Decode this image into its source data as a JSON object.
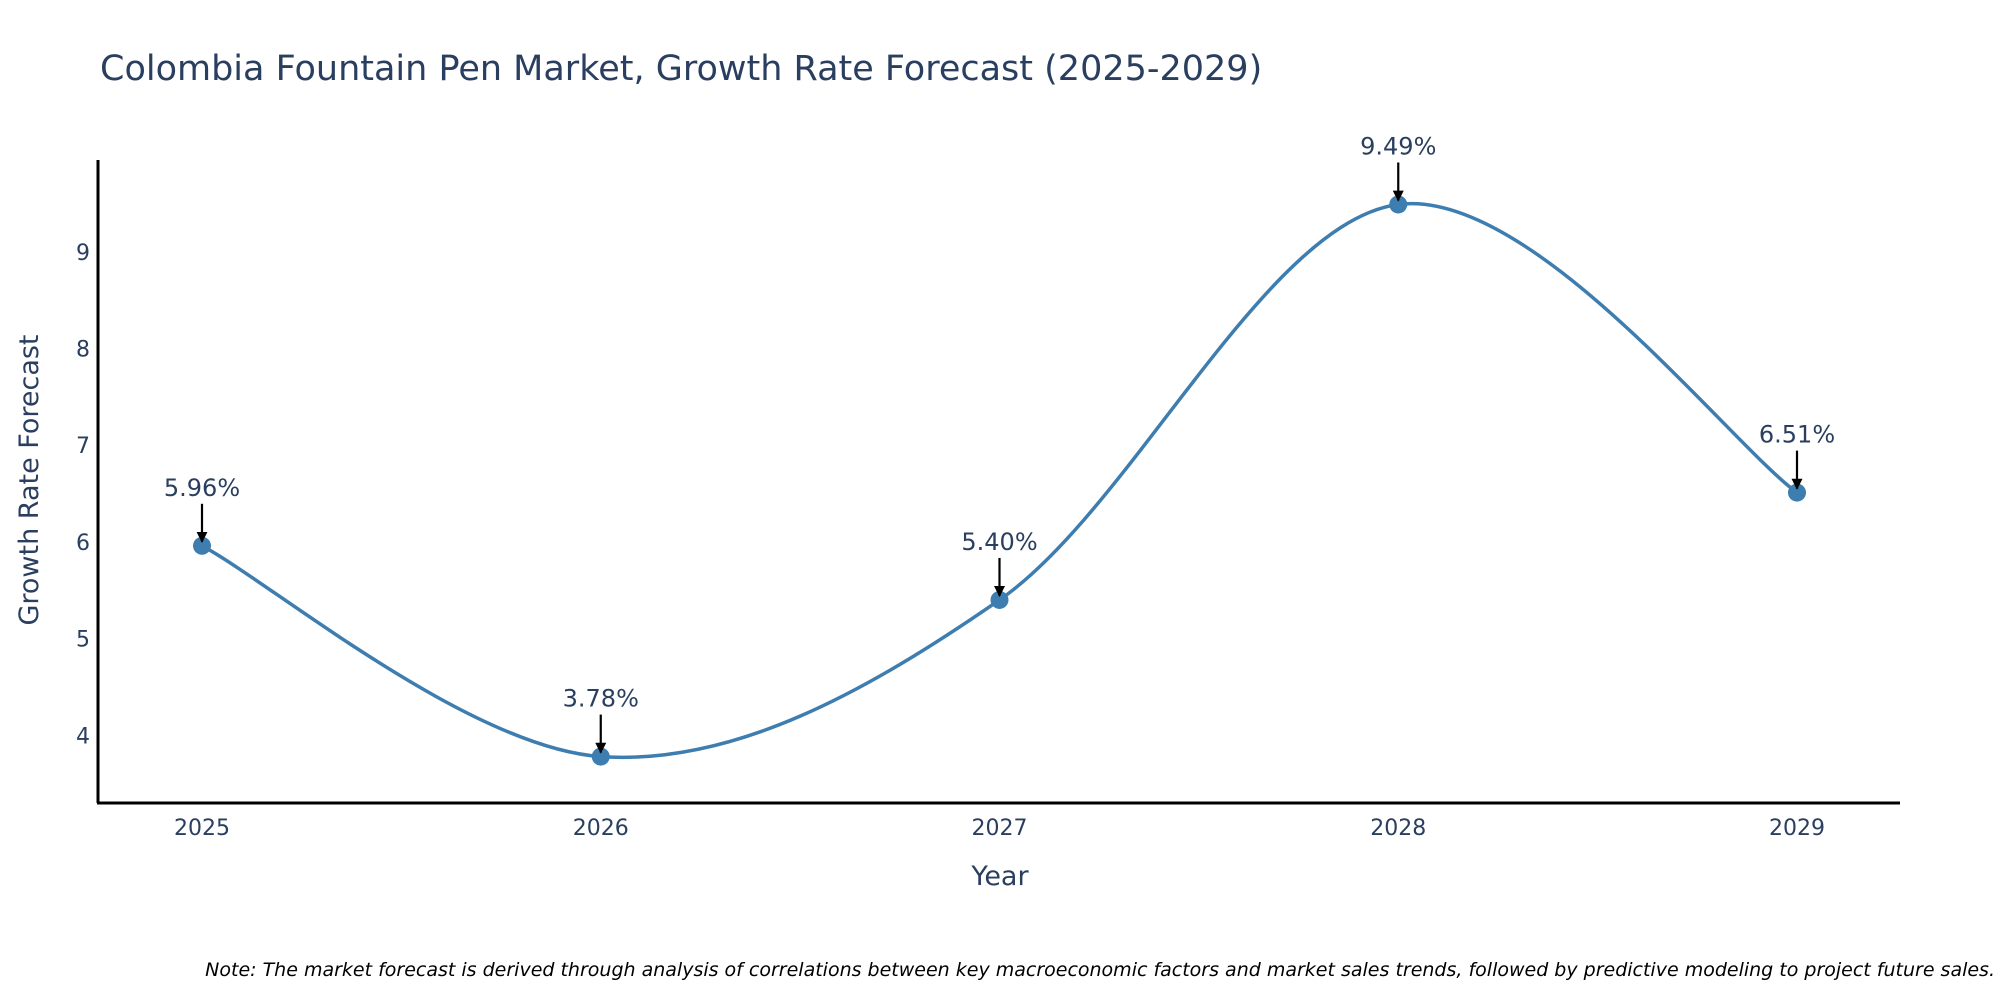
{
  "chart_data": {
    "type": "line",
    "title": "Colombia Fountain Pen Market, Growth Rate Forecast (2025-2029)",
    "xlabel": "Year",
    "ylabel": "Growth Rate Forecast",
    "categories": [
      "2025",
      "2026",
      "2027",
      "2028",
      "2029"
    ],
    "values": [
      5.96,
      3.78,
      5.4,
      9.49,
      6.51
    ],
    "data_labels": [
      "5.96%",
      "3.78%",
      "5.40%",
      "9.49%",
      "6.51%"
    ],
    "yticks": [
      4,
      5,
      6,
      7,
      8,
      9
    ],
    "ylim": [
      3.3,
      9.95
    ],
    "line_shape": "spline",
    "grid": false,
    "note": "Note: The market forecast is derived through analysis of correlations between key macroeconomic factors and market sales trends, followed by predictive modeling to project future sales.",
    "colors": {
      "line": "#3d7daf",
      "marker": "#3d7daf",
      "axis": "#000000",
      "text": "#2a3f5f",
      "arrow": "#000000"
    }
  }
}
